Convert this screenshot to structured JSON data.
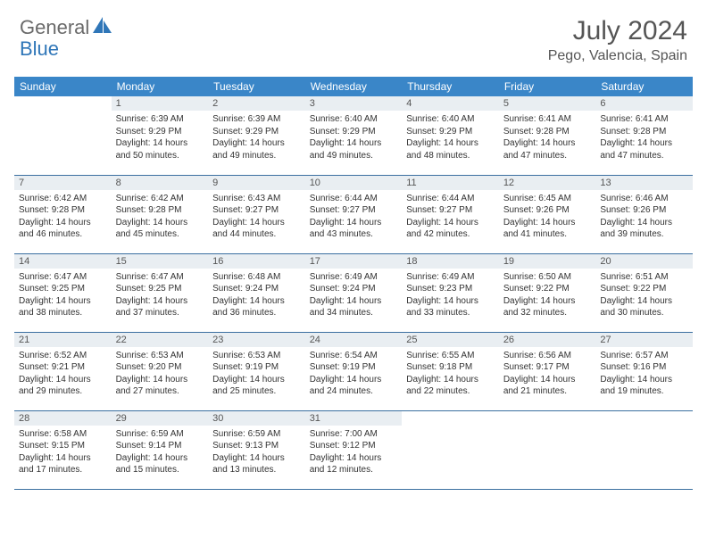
{
  "brand": {
    "part1": "General",
    "part2": "Blue"
  },
  "title": "July 2024",
  "location": "Pego, Valencia, Spain",
  "colors": {
    "header_bg": "#3a86c8",
    "daynum_bg": "#e9eef2",
    "row_border": "#3a6fa0",
    "brand_gray": "#6a6a6a",
    "brand_blue": "#2f76b8"
  },
  "weekdays": [
    "Sunday",
    "Monday",
    "Tuesday",
    "Wednesday",
    "Thursday",
    "Friday",
    "Saturday"
  ],
  "weeks": [
    [
      {
        "n": "",
        "sr": "",
        "ss": "",
        "dl": ""
      },
      {
        "n": "1",
        "sr": "Sunrise: 6:39 AM",
        "ss": "Sunset: 9:29 PM",
        "dl": "Daylight: 14 hours and 50 minutes."
      },
      {
        "n": "2",
        "sr": "Sunrise: 6:39 AM",
        "ss": "Sunset: 9:29 PM",
        "dl": "Daylight: 14 hours and 49 minutes."
      },
      {
        "n": "3",
        "sr": "Sunrise: 6:40 AM",
        "ss": "Sunset: 9:29 PM",
        "dl": "Daylight: 14 hours and 49 minutes."
      },
      {
        "n": "4",
        "sr": "Sunrise: 6:40 AM",
        "ss": "Sunset: 9:29 PM",
        "dl": "Daylight: 14 hours and 48 minutes."
      },
      {
        "n": "5",
        "sr": "Sunrise: 6:41 AM",
        "ss": "Sunset: 9:28 PM",
        "dl": "Daylight: 14 hours and 47 minutes."
      },
      {
        "n": "6",
        "sr": "Sunrise: 6:41 AM",
        "ss": "Sunset: 9:28 PM",
        "dl": "Daylight: 14 hours and 47 minutes."
      }
    ],
    [
      {
        "n": "7",
        "sr": "Sunrise: 6:42 AM",
        "ss": "Sunset: 9:28 PM",
        "dl": "Daylight: 14 hours and 46 minutes."
      },
      {
        "n": "8",
        "sr": "Sunrise: 6:42 AM",
        "ss": "Sunset: 9:28 PM",
        "dl": "Daylight: 14 hours and 45 minutes."
      },
      {
        "n": "9",
        "sr": "Sunrise: 6:43 AM",
        "ss": "Sunset: 9:27 PM",
        "dl": "Daylight: 14 hours and 44 minutes."
      },
      {
        "n": "10",
        "sr": "Sunrise: 6:44 AM",
        "ss": "Sunset: 9:27 PM",
        "dl": "Daylight: 14 hours and 43 minutes."
      },
      {
        "n": "11",
        "sr": "Sunrise: 6:44 AM",
        "ss": "Sunset: 9:27 PM",
        "dl": "Daylight: 14 hours and 42 minutes."
      },
      {
        "n": "12",
        "sr": "Sunrise: 6:45 AM",
        "ss": "Sunset: 9:26 PM",
        "dl": "Daylight: 14 hours and 41 minutes."
      },
      {
        "n": "13",
        "sr": "Sunrise: 6:46 AM",
        "ss": "Sunset: 9:26 PM",
        "dl": "Daylight: 14 hours and 39 minutes."
      }
    ],
    [
      {
        "n": "14",
        "sr": "Sunrise: 6:47 AM",
        "ss": "Sunset: 9:25 PM",
        "dl": "Daylight: 14 hours and 38 minutes."
      },
      {
        "n": "15",
        "sr": "Sunrise: 6:47 AM",
        "ss": "Sunset: 9:25 PM",
        "dl": "Daylight: 14 hours and 37 minutes."
      },
      {
        "n": "16",
        "sr": "Sunrise: 6:48 AM",
        "ss": "Sunset: 9:24 PM",
        "dl": "Daylight: 14 hours and 36 minutes."
      },
      {
        "n": "17",
        "sr": "Sunrise: 6:49 AM",
        "ss": "Sunset: 9:24 PM",
        "dl": "Daylight: 14 hours and 34 minutes."
      },
      {
        "n": "18",
        "sr": "Sunrise: 6:49 AM",
        "ss": "Sunset: 9:23 PM",
        "dl": "Daylight: 14 hours and 33 minutes."
      },
      {
        "n": "19",
        "sr": "Sunrise: 6:50 AM",
        "ss": "Sunset: 9:22 PM",
        "dl": "Daylight: 14 hours and 32 minutes."
      },
      {
        "n": "20",
        "sr": "Sunrise: 6:51 AM",
        "ss": "Sunset: 9:22 PM",
        "dl": "Daylight: 14 hours and 30 minutes."
      }
    ],
    [
      {
        "n": "21",
        "sr": "Sunrise: 6:52 AM",
        "ss": "Sunset: 9:21 PM",
        "dl": "Daylight: 14 hours and 29 minutes."
      },
      {
        "n": "22",
        "sr": "Sunrise: 6:53 AM",
        "ss": "Sunset: 9:20 PM",
        "dl": "Daylight: 14 hours and 27 minutes."
      },
      {
        "n": "23",
        "sr": "Sunrise: 6:53 AM",
        "ss": "Sunset: 9:19 PM",
        "dl": "Daylight: 14 hours and 25 minutes."
      },
      {
        "n": "24",
        "sr": "Sunrise: 6:54 AM",
        "ss": "Sunset: 9:19 PM",
        "dl": "Daylight: 14 hours and 24 minutes."
      },
      {
        "n": "25",
        "sr": "Sunrise: 6:55 AM",
        "ss": "Sunset: 9:18 PM",
        "dl": "Daylight: 14 hours and 22 minutes."
      },
      {
        "n": "26",
        "sr": "Sunrise: 6:56 AM",
        "ss": "Sunset: 9:17 PM",
        "dl": "Daylight: 14 hours and 21 minutes."
      },
      {
        "n": "27",
        "sr": "Sunrise: 6:57 AM",
        "ss": "Sunset: 9:16 PM",
        "dl": "Daylight: 14 hours and 19 minutes."
      }
    ],
    [
      {
        "n": "28",
        "sr": "Sunrise: 6:58 AM",
        "ss": "Sunset: 9:15 PM",
        "dl": "Daylight: 14 hours and 17 minutes."
      },
      {
        "n": "29",
        "sr": "Sunrise: 6:59 AM",
        "ss": "Sunset: 9:14 PM",
        "dl": "Daylight: 14 hours and 15 minutes."
      },
      {
        "n": "30",
        "sr": "Sunrise: 6:59 AM",
        "ss": "Sunset: 9:13 PM",
        "dl": "Daylight: 14 hours and 13 minutes."
      },
      {
        "n": "31",
        "sr": "Sunrise: 7:00 AM",
        "ss": "Sunset: 9:12 PM",
        "dl": "Daylight: 14 hours and 12 minutes."
      },
      {
        "n": "",
        "sr": "",
        "ss": "",
        "dl": ""
      },
      {
        "n": "",
        "sr": "",
        "ss": "",
        "dl": ""
      },
      {
        "n": "",
        "sr": "",
        "ss": "",
        "dl": ""
      }
    ]
  ]
}
